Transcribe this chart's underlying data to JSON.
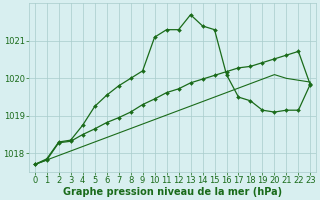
{
  "xlabel": "Graphe pression niveau de la mer (hPa)",
  "hours": [
    0,
    1,
    2,
    3,
    4,
    5,
    6,
    7,
    8,
    9,
    10,
    11,
    12,
    13,
    14,
    15,
    16,
    17,
    18,
    19,
    20,
    21,
    22,
    23
  ],
  "series_jagged": [
    1017.7,
    1017.85,
    1018.3,
    1018.35,
    1018.75,
    1019.25,
    1019.55,
    1019.8,
    1020.0,
    1020.2,
    1021.1,
    1021.3,
    1021.3,
    1021.7,
    1021.4,
    1021.3,
    1020.1,
    1019.5,
    1019.4,
    1019.15,
    1019.1,
    1019.15,
    1019.15,
    1019.85
  ],
  "series_smooth": [
    1017.7,
    1017.82,
    1018.28,
    1018.32,
    1018.5,
    1018.65,
    1018.82,
    1018.95,
    1019.1,
    1019.3,
    1019.45,
    1019.62,
    1019.72,
    1019.88,
    1019.98,
    1020.08,
    1020.18,
    1020.28,
    1020.32,
    1020.42,
    1020.52,
    1020.62,
    1020.72,
    1019.82
  ],
  "series_trend": [
    1017.7,
    1017.82,
    1017.94,
    1018.06,
    1018.18,
    1018.3,
    1018.42,
    1018.54,
    1018.66,
    1018.78,
    1018.9,
    1019.02,
    1019.14,
    1019.26,
    1019.38,
    1019.5,
    1019.62,
    1019.74,
    1019.86,
    1019.98,
    1020.1,
    1020.0,
    1019.95,
    1019.9
  ],
  "ylim": [
    1017.5,
    1022.0
  ],
  "yticks": [
    1018,
    1019,
    1020,
    1021
  ],
  "line_color": "#1a6b1a",
  "bg_color": "#d8eff0",
  "grid_color": "#a8cccc",
  "label_color": "#1a6b1a",
  "label_fontsize": 7.0,
  "tick_fontsize": 6.0
}
